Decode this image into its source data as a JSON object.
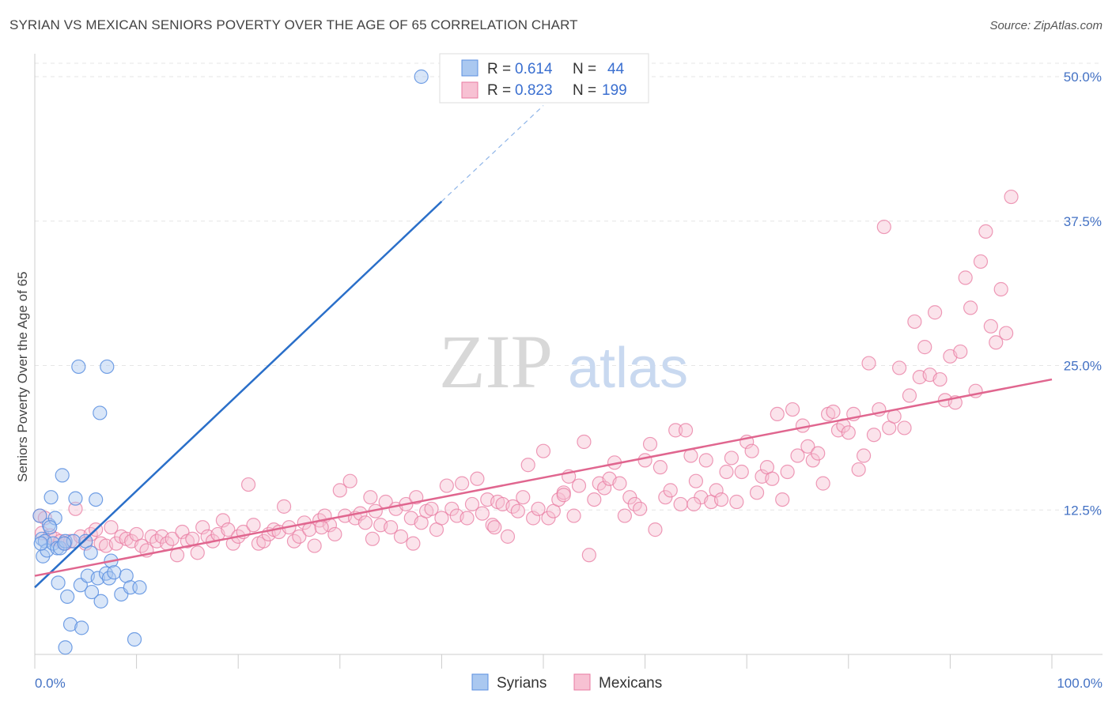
{
  "title": "SYRIAN VS MEXICAN SENIORS POVERTY OVER THE AGE OF 65 CORRELATION CHART",
  "source": "Source: ZipAtlas.com",
  "watermark": {
    "zip": "ZIP",
    "atlas": "atlas"
  },
  "legend": {
    "syrians": {
      "r_label": "R =",
      "r_value": "0.614",
      "n_label": "N =",
      "n_value": "44"
    },
    "mexicans": {
      "r_label": "R =",
      "r_value": "0.823",
      "n_label": "N =",
      "n_value": "199"
    }
  },
  "bottom_legend": {
    "syrians": "Syrians",
    "mexicans": "Mexicans"
  },
  "chart_data": {
    "type": "scatter",
    "title": "SYRIAN VS MEXICAN SENIORS POVERTY OVER THE AGE OF 65 CORRELATION CHART",
    "xlabel": "",
    "ylabel": "Seniors Poverty Over the Age of 65",
    "xlim": [
      0,
      100
    ],
    "ylim": [
      0,
      50
    ],
    "x_tick_labels": [
      "0.0%",
      "100.0%"
    ],
    "y_ticks": [
      12.5,
      25.0,
      37.5,
      50.0
    ],
    "y_tick_labels": [
      "12.5%",
      "25.0%",
      "37.5%",
      "50.0%"
    ],
    "grid": true,
    "legend_position": "top-center",
    "colors": {
      "syrians": "#5b8fe0",
      "syrians_fill": "#aac8f0",
      "mexicans": "#e87aa0",
      "mexicans_fill": "#f7c1d3",
      "syrians_line": "#2a6fc9",
      "mexicans_line": "#e0668f"
    },
    "series": [
      {
        "name": "Syrians",
        "trend": {
          "x": [
            0,
            40
          ],
          "y": [
            5.8,
            39.2
          ],
          "dashed_to": [
            50,
            47.5
          ]
        },
        "points": [
          [
            0.5,
            12.0
          ],
          [
            0.7,
            10.0
          ],
          [
            0.8,
            8.5
          ],
          [
            1.0,
            9.8
          ],
          [
            1.2,
            9.0
          ],
          [
            1.4,
            11.2
          ],
          [
            1.6,
            13.6
          ],
          [
            1.8,
            9.6
          ],
          [
            2.0,
            11.8
          ],
          [
            2.2,
            9.2
          ],
          [
            2.3,
            6.2
          ],
          [
            2.5,
            9.2
          ],
          [
            2.7,
            15.5
          ],
          [
            3.0,
            9.8
          ],
          [
            3.2,
            5.0
          ],
          [
            3.5,
            2.6
          ],
          [
            3.8,
            9.8
          ],
          [
            4.0,
            13.5
          ],
          [
            4.3,
            24.9
          ],
          [
            4.5,
            6.0
          ],
          [
            4.6,
            2.3
          ],
          [
            5.0,
            9.8
          ],
          [
            5.2,
            6.8
          ],
          [
            5.5,
            8.8
          ],
          [
            5.6,
            5.4
          ],
          [
            6.0,
            13.4
          ],
          [
            6.2,
            6.6
          ],
          [
            6.4,
            20.9
          ],
          [
            6.5,
            4.6
          ],
          [
            7.0,
            7.0
          ],
          [
            7.1,
            24.9
          ],
          [
            7.3,
            6.6
          ],
          [
            7.5,
            8.1
          ],
          [
            7.8,
            7.1
          ],
          [
            8.5,
            5.2
          ],
          [
            9.0,
            6.8
          ],
          [
            9.4,
            5.8
          ],
          [
            9.8,
            1.3
          ],
          [
            10.3,
            5.8
          ],
          [
            0.6,
            9.6
          ],
          [
            1.5,
            11.0
          ],
          [
            2.9,
            9.6
          ],
          [
            38.0,
            50.0
          ],
          [
            3.0,
            0.6
          ]
        ]
      },
      {
        "name": "Mexicans",
        "trend": {
          "x": [
            0,
            100
          ],
          "y": [
            6.8,
            23.8
          ]
        },
        "points": [
          [
            0.5,
            12.0
          ],
          [
            0.7,
            10.5
          ],
          [
            1.0,
            11.8
          ],
          [
            1.5,
            10.3
          ],
          [
            2.0,
            10.0
          ],
          [
            2.5,
            9.8
          ],
          [
            3.0,
            9.6
          ],
          [
            3.5,
            9.8
          ],
          [
            4.0,
            12.6
          ],
          [
            4.5,
            10.2
          ],
          [
            5.0,
            9.6
          ],
          [
            5.5,
            10.4
          ],
          [
            6.0,
            10.8
          ],
          [
            6.5,
            9.6
          ],
          [
            7.0,
            9.4
          ],
          [
            7.5,
            11.0
          ],
          [
            8.0,
            9.6
          ],
          [
            8.5,
            10.2
          ],
          [
            9.0,
            10.0
          ],
          [
            9.5,
            9.8
          ],
          [
            10.0,
            10.4
          ],
          [
            10.5,
            9.4
          ],
          [
            11.0,
            9.0
          ],
          [
            11.5,
            10.2
          ],
          [
            12.0,
            9.8
          ],
          [
            12.5,
            10.2
          ],
          [
            13.0,
            9.6
          ],
          [
            13.5,
            10.0
          ],
          [
            14.0,
            8.6
          ],
          [
            14.5,
            10.6
          ],
          [
            15.0,
            9.8
          ],
          [
            15.5,
            10.0
          ],
          [
            16.0,
            8.8
          ],
          [
            16.5,
            11.0
          ],
          [
            17.0,
            10.2
          ],
          [
            17.5,
            9.8
          ],
          [
            18.0,
            10.4
          ],
          [
            18.5,
            11.6
          ],
          [
            19.0,
            10.8
          ],
          [
            19.5,
            9.6
          ],
          [
            20.0,
            10.2
          ],
          [
            20.5,
            10.6
          ],
          [
            21.0,
            14.7
          ],
          [
            21.5,
            11.2
          ],
          [
            22.0,
            9.6
          ],
          [
            22.5,
            9.8
          ],
          [
            23.0,
            10.4
          ],
          [
            23.5,
            10.8
          ],
          [
            24.0,
            10.6
          ],
          [
            24.5,
            12.8
          ],
          [
            25.0,
            11.0
          ],
          [
            25.5,
            9.8
          ],
          [
            26.0,
            10.2
          ],
          [
            26.5,
            11.4
          ],
          [
            27.0,
            10.8
          ],
          [
            27.5,
            9.4
          ],
          [
            28.0,
            11.6
          ],
          [
            28.5,
            12.0
          ],
          [
            29.0,
            11.2
          ],
          [
            29.5,
            10.4
          ],
          [
            30.0,
            14.2
          ],
          [
            30.5,
            12.0
          ],
          [
            31.0,
            15.0
          ],
          [
            31.5,
            11.8
          ],
          [
            32.0,
            12.2
          ],
          [
            32.5,
            11.4
          ],
          [
            33.0,
            13.6
          ],
          [
            33.5,
            12.4
          ],
          [
            34.0,
            11.2
          ],
          [
            34.5,
            13.2
          ],
          [
            35.0,
            11.0
          ],
          [
            35.5,
            12.6
          ],
          [
            36.0,
            10.2
          ],
          [
            36.5,
            13.0
          ],
          [
            37.0,
            11.8
          ],
          [
            37.5,
            13.6
          ],
          [
            38.0,
            11.4
          ],
          [
            38.5,
            12.4
          ],
          [
            39.0,
            12.6
          ],
          [
            39.5,
            10.8
          ],
          [
            40.0,
            11.8
          ],
          [
            40.5,
            14.6
          ],
          [
            41.0,
            12.6
          ],
          [
            41.5,
            12.0
          ],
          [
            42.0,
            14.8
          ],
          [
            42.5,
            11.8
          ],
          [
            43.0,
            13.0
          ],
          [
            43.5,
            15.2
          ],
          [
            44.0,
            12.2
          ],
          [
            44.5,
            13.4
          ],
          [
            45.0,
            11.2
          ],
          [
            45.5,
            13.2
          ],
          [
            46.0,
            13.0
          ],
          [
            46.5,
            10.2
          ],
          [
            47.0,
            12.8
          ],
          [
            47.5,
            12.4
          ],
          [
            48.0,
            13.6
          ],
          [
            48.5,
            16.4
          ],
          [
            49.0,
            11.8
          ],
          [
            49.5,
            12.6
          ],
          [
            50.0,
            17.6
          ],
          [
            50.5,
            11.8
          ],
          [
            51.0,
            12.4
          ],
          [
            51.5,
            13.4
          ],
          [
            52.0,
            14.0
          ],
          [
            52.5,
            15.4
          ],
          [
            53.0,
            12.0
          ],
          [
            53.5,
            14.6
          ],
          [
            54.0,
            18.4
          ],
          [
            54.5,
            8.6
          ],
          [
            55.0,
            13.4
          ],
          [
            55.5,
            14.8
          ],
          [
            56.0,
            14.4
          ],
          [
            56.5,
            15.2
          ],
          [
            57.0,
            16.6
          ],
          [
            57.5,
            14.8
          ],
          [
            58.0,
            12.0
          ],
          [
            58.5,
            13.6
          ],
          [
            59.0,
            13.0
          ],
          [
            59.5,
            12.6
          ],
          [
            60.0,
            16.8
          ],
          [
            60.5,
            18.2
          ],
          [
            61.0,
            10.8
          ],
          [
            61.5,
            16.2
          ],
          [
            62.0,
            13.6
          ],
          [
            62.5,
            14.2
          ],
          [
            63.0,
            19.4
          ],
          [
            63.5,
            13.0
          ],
          [
            64.0,
            19.4
          ],
          [
            64.5,
            17.2
          ],
          [
            65.0,
            15.0
          ],
          [
            65.5,
            13.6
          ],
          [
            66.0,
            16.8
          ],
          [
            66.5,
            13.2
          ],
          [
            67.0,
            14.2
          ],
          [
            67.5,
            13.4
          ],
          [
            68.0,
            15.8
          ],
          [
            68.5,
            17.0
          ],
          [
            69.0,
            13.2
          ],
          [
            69.5,
            15.8
          ],
          [
            70.0,
            18.4
          ],
          [
            70.5,
            17.6
          ],
          [
            71.0,
            14.0
          ],
          [
            71.5,
            15.4
          ],
          [
            72.0,
            16.2
          ],
          [
            72.5,
            15.2
          ],
          [
            73.0,
            20.8
          ],
          [
            73.5,
            13.4
          ],
          [
            74.0,
            15.8
          ],
          [
            74.5,
            21.2
          ],
          [
            75.0,
            17.2
          ],
          [
            75.5,
            19.8
          ],
          [
            76.0,
            18.0
          ],
          [
            76.5,
            16.8
          ],
          [
            77.0,
            17.4
          ],
          [
            77.5,
            14.8
          ],
          [
            78.0,
            20.8
          ],
          [
            78.5,
            21.0
          ],
          [
            79.0,
            19.4
          ],
          [
            79.5,
            19.8
          ],
          [
            80.0,
            19.2
          ],
          [
            80.5,
            20.8
          ],
          [
            81.0,
            16.0
          ],
          [
            81.5,
            17.2
          ],
          [
            82.0,
            25.2
          ],
          [
            82.5,
            19.0
          ],
          [
            83.0,
            21.2
          ],
          [
            83.5,
            37.0
          ],
          [
            84.0,
            19.6
          ],
          [
            84.5,
            20.6
          ],
          [
            85.0,
            24.8
          ],
          [
            85.5,
            19.6
          ],
          [
            86.0,
            22.4
          ],
          [
            86.5,
            28.8
          ],
          [
            87.0,
            24.0
          ],
          [
            87.5,
            26.6
          ],
          [
            88.0,
            24.2
          ],
          [
            88.5,
            29.6
          ],
          [
            89.0,
            23.8
          ],
          [
            89.5,
            22.0
          ],
          [
            90.0,
            25.8
          ],
          [
            90.5,
            21.8
          ],
          [
            91.0,
            26.2
          ],
          [
            91.5,
            32.6
          ],
          [
            92.0,
            30.0
          ],
          [
            92.5,
            22.8
          ],
          [
            93.0,
            34.0
          ],
          [
            93.5,
            36.6
          ],
          [
            94.0,
            28.4
          ],
          [
            94.5,
            27.0
          ],
          [
            95.0,
            31.6
          ],
          [
            95.5,
            27.8
          ],
          [
            96.0,
            39.6
          ],
          [
            64.8,
            13.0
          ],
          [
            37.2,
            9.6
          ],
          [
            52.0,
            13.8
          ],
          [
            45.2,
            11.0
          ],
          [
            28.2,
            11.0
          ],
          [
            33.2,
            10.0
          ]
        ]
      }
    ]
  }
}
